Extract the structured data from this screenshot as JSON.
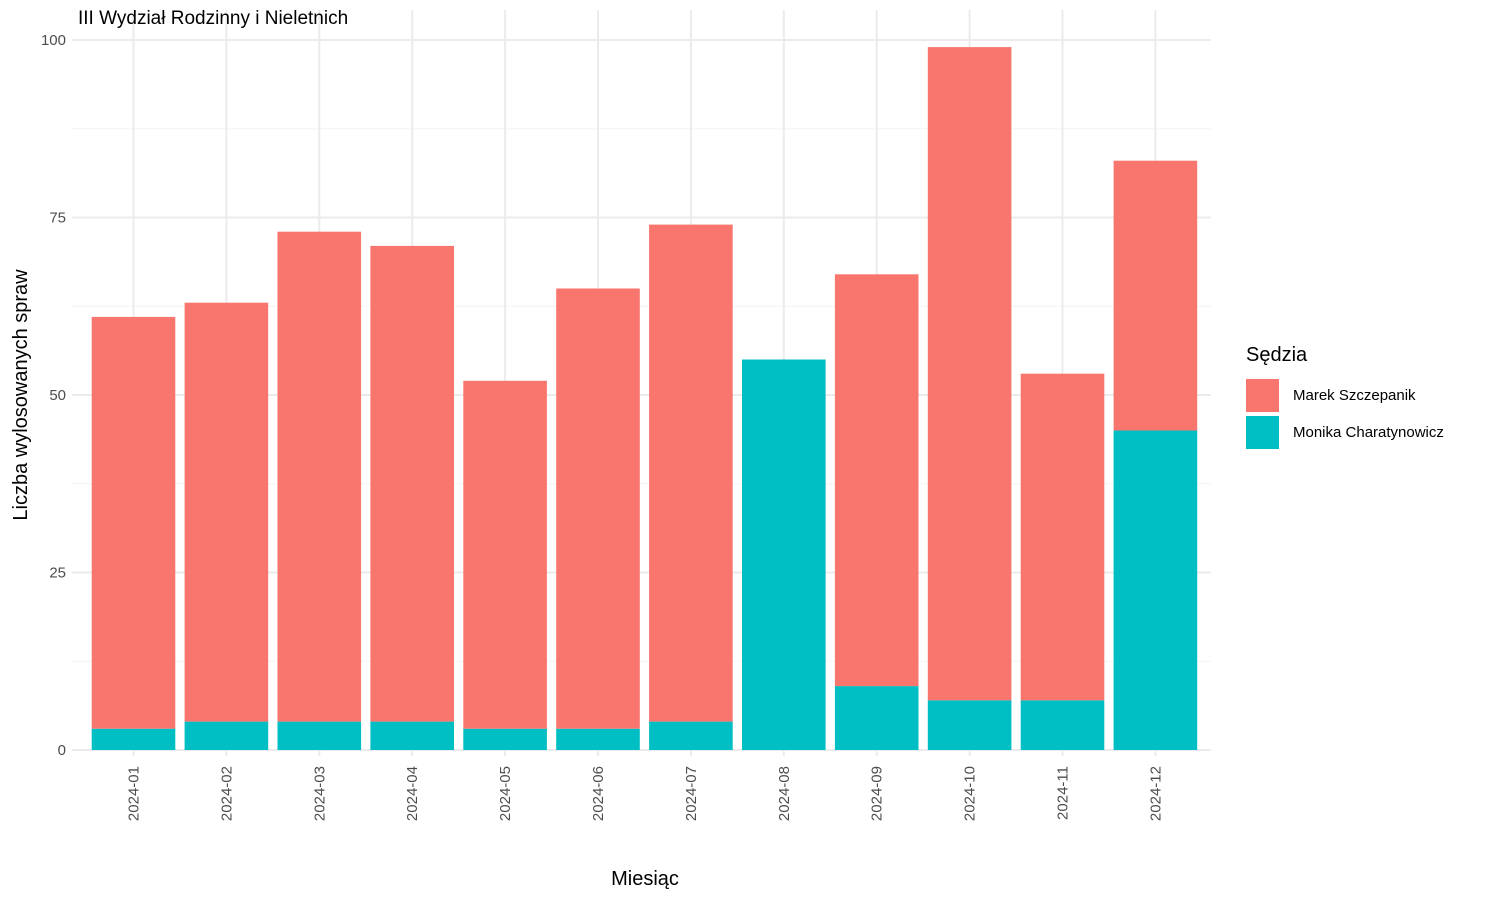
{
  "chart_data": {
    "type": "bar",
    "stacked": true,
    "title": "III Wydział Rodzinny i Nieletnich",
    "xlabel": "Miesiąc",
    "ylabel": "Liczba wylosowanych spraw",
    "ylim": [
      0,
      100
    ],
    "yticks": [
      0,
      25,
      50,
      75,
      100
    ],
    "grid": true,
    "legend_position": "right",
    "legend_title": "Sędzia",
    "categories": [
      "2024-01",
      "2024-02",
      "2024-03",
      "2024-04",
      "2024-05",
      "2024-06",
      "2024-07",
      "2024-08",
      "2024-09",
      "2024-10",
      "2024-11",
      "2024-12"
    ],
    "series": [
      {
        "name": "Monika Charatynowicz",
        "color": "#00BFC4",
        "values": [
          3,
          4,
          4,
          4,
          3,
          3,
          4,
          55,
          9,
          7,
          7,
          45
        ]
      },
      {
        "name": "Marek Szczepanik",
        "color": "#F8766D",
        "values": [
          58,
          59,
          69,
          67,
          49,
          62,
          70,
          0,
          58,
          92,
          46,
          38
        ]
      }
    ],
    "legend_order": [
      "Marek Szczepanik",
      "Monika Charatynowicz"
    ]
  }
}
